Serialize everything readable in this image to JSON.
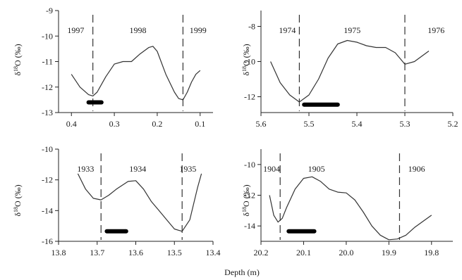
{
  "figure": {
    "xlabel": "Depth  (m)",
    "ylabel": "δ18O (‰)"
  },
  "chart_data": [
    {
      "type": "line",
      "xlabel": "",
      "ylabel": "",
      "xlim": [
        0.43,
        0.07
      ],
      "ylim": [
        -13,
        -9
      ],
      "xticks": [
        "0.4",
        "0.3",
        "0.2",
        "0.1"
      ],
      "xtick_values": [
        0.4,
        0.3,
        0.2,
        0.1
      ],
      "yticks": [
        "-9",
        "-10",
        "-11",
        "-12",
        "-13"
      ],
      "ytick_values": [
        -9,
        -10,
        -11,
        -12,
        -13
      ],
      "x": [
        0.4,
        0.38,
        0.36,
        0.35,
        0.34,
        0.32,
        0.3,
        0.28,
        0.26,
        0.24,
        0.22,
        0.21,
        0.2,
        0.18,
        0.16,
        0.15,
        0.14,
        0.13,
        0.12,
        0.11,
        0.1
      ],
      "y": [
        -11.5,
        -12.0,
        -12.3,
        -12.35,
        -12.2,
        -11.6,
        -11.1,
        -11.0,
        -11.0,
        -10.7,
        -10.45,
        -10.4,
        -10.6,
        -11.5,
        -12.2,
        -12.45,
        -12.5,
        -12.2,
        -11.8,
        -11.5,
        -11.35
      ],
      "boundaries": [
        0.35,
        0.14
      ],
      "years": [
        {
          "label": "1997",
          "x": 0.39
        },
        {
          "label": "1998",
          "x": 0.245
        },
        {
          "label": "1999",
          "x": 0.105
        }
      ],
      "bar": [
        0.36,
        0.33
      ],
      "bar_y": -12.6
    },
    {
      "type": "line",
      "xlabel": "",
      "ylabel": "δ18O (‰)",
      "xlim": [
        5.6,
        5.2
      ],
      "ylim": [
        -12.9,
        -7.1
      ],
      "xticks": [
        "5.6",
        "5.5",
        "5.4",
        "5.3",
        "5.2"
      ],
      "xtick_values": [
        5.6,
        5.5,
        5.4,
        5.3,
        5.2
      ],
      "yticks": [
        "-8",
        "-10",
        "-12"
      ],
      "ytick_values": [
        -8,
        -10,
        -12
      ],
      "x": [
        5.58,
        5.56,
        5.54,
        5.52,
        5.5,
        5.48,
        5.46,
        5.44,
        5.42,
        5.4,
        5.38,
        5.36,
        5.34,
        5.32,
        5.3,
        5.28,
        5.26,
        5.25
      ],
      "y": [
        -10.0,
        -11.2,
        -11.9,
        -12.3,
        -11.9,
        -11.0,
        -9.8,
        -9.0,
        -8.8,
        -8.9,
        -9.1,
        -9.2,
        -9.2,
        -9.5,
        -10.15,
        -10.0,
        -9.6,
        -9.4
      ],
      "boundaries": [
        5.52,
        5.3
      ],
      "years": [
        {
          "label": "1974",
          "x": 5.545
        },
        {
          "label": "1975",
          "x": 5.41
        },
        {
          "label": "1976",
          "x": 5.235
        }
      ],
      "bar": [
        5.51,
        5.44
      ],
      "bar_y": -12.45
    },
    {
      "type": "line",
      "xlabel": "",
      "ylabel": "",
      "xlim": [
        13.8,
        13.4
      ],
      "ylim": [
        -16,
        -10
      ],
      "xticks": [
        "13.8",
        "13.7",
        "13.6",
        "13.5",
        "13.4"
      ],
      "xtick_values": [
        13.8,
        13.7,
        13.6,
        13.5,
        13.4
      ],
      "yticks": [
        "-10",
        "-12",
        "-14",
        "-16"
      ],
      "ytick_values": [
        -10,
        -12,
        -14,
        -16
      ],
      "x": [
        13.75,
        13.73,
        13.71,
        13.69,
        13.67,
        13.65,
        13.62,
        13.6,
        13.58,
        13.56,
        13.54,
        13.52,
        13.5,
        13.48,
        13.46,
        13.44,
        13.43
      ],
      "y": [
        -11.6,
        -12.6,
        -13.2,
        -13.3,
        -13.0,
        -12.6,
        -12.1,
        -12.05,
        -12.6,
        -13.4,
        -14.0,
        -14.6,
        -15.2,
        -15.35,
        -14.6,
        -12.5,
        -11.6
      ],
      "boundaries": [
        13.69,
        13.48
      ],
      "years": [
        {
          "label": "1933",
          "x": 13.73
        },
        {
          "label": "1934",
          "x": 13.595
        },
        {
          "label": "1935",
          "x": 13.465
        }
      ],
      "bar": [
        13.675,
        13.625
      ],
      "bar_y": -15.35
    },
    {
      "type": "line",
      "xlabel": "Depth  (m)",
      "ylabel": "δ18O (‰)",
      "xlim": [
        20.2,
        19.75
      ],
      "ylim": [
        -15,
        -9
      ],
      "xticks": [
        "20.2",
        "20.1",
        "20.0",
        "19.9",
        "19.8"
      ],
      "xtick_values": [
        20.2,
        20.1,
        20.0,
        19.9,
        19.8
      ],
      "yticks": [
        "-10",
        "-12",
        "-14"
      ],
      "ytick_values": [
        -10,
        -12,
        -14
      ],
      "x": [
        20.18,
        20.17,
        20.16,
        20.15,
        20.14,
        20.12,
        20.1,
        20.08,
        20.06,
        20.04,
        20.02,
        20.0,
        19.98,
        19.96,
        19.94,
        19.92,
        19.9,
        19.88,
        19.86,
        19.84,
        19.82,
        19.8
      ],
      "y": [
        -12.0,
        -13.3,
        -13.75,
        -13.5,
        -12.8,
        -11.6,
        -10.9,
        -10.8,
        -11.1,
        -11.6,
        -11.8,
        -11.85,
        -12.3,
        -13.1,
        -14.0,
        -14.6,
        -14.9,
        -14.85,
        -14.6,
        -14.1,
        -13.7,
        -13.3
      ],
      "boundaries": [
        20.155,
        19.875
      ],
      "years": [
        {
          "label": "1904",
          "x": 20.175
        },
        {
          "label": "1905",
          "x": 20.07
        },
        {
          "label": "1906",
          "x": 19.835
        }
      ],
      "bar": [
        20.135,
        20.075
      ],
      "bar_y": -14.35
    }
  ]
}
